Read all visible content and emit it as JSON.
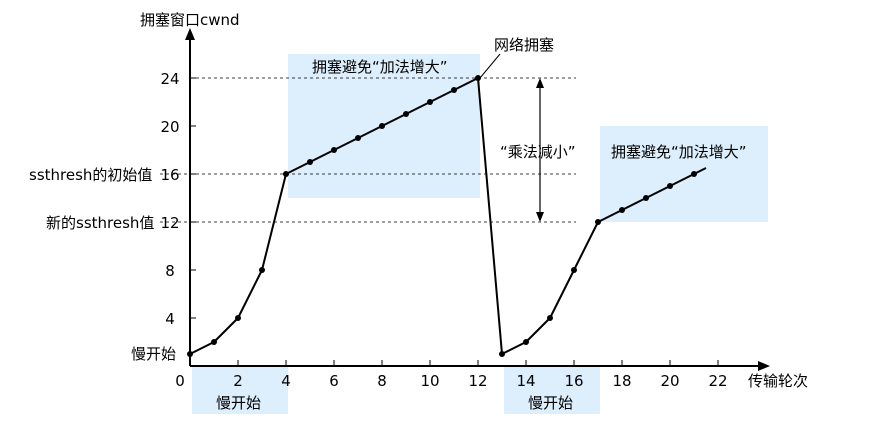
{
  "chart_data": {
    "type": "line",
    "y_title": "拥塞窗口cwnd",
    "x_title": "传输轮次",
    "x_ticks": [
      "0",
      "2",
      "4",
      "6",
      "8",
      "10",
      "12",
      "14",
      "16",
      "18",
      "20",
      "22"
    ],
    "y_ticks": [
      "4",
      "8",
      "12",
      "16",
      "20",
      "24"
    ],
    "xlim": [
      0,
      24
    ],
    "ylim": [
      0,
      26
    ],
    "series": [
      {
        "points": [
          [
            0,
            1
          ],
          [
            1,
            2
          ],
          [
            2,
            4
          ],
          [
            3,
            8
          ],
          [
            4,
            16
          ],
          [
            5,
            17
          ],
          [
            6,
            18
          ],
          [
            7,
            19
          ],
          [
            8,
            20
          ],
          [
            9,
            21
          ],
          [
            10,
            22
          ],
          [
            11,
            23
          ],
          [
            12,
            24
          ],
          [
            13,
            1
          ],
          [
            14,
            2
          ],
          [
            15,
            4
          ],
          [
            16,
            8
          ],
          [
            17,
            12
          ],
          [
            18,
            13
          ],
          [
            19,
            14
          ],
          [
            20,
            15
          ],
          [
            21,
            16
          ],
          [
            21.5,
            16.5
          ]
        ]
      }
    ],
    "dashed_levels": [
      24,
      16,
      12
    ],
    "annotations": {
      "slow_start_1": "慢开始",
      "slow_start_2": "慢开始",
      "slow_start_y": "慢开始",
      "ca_1": "拥塞避免“加法增大”",
      "ca_2": "拥塞避免“加法增大”",
      "md": "“乘法减小”",
      "congestion": "网络拥塞",
      "ssthresh_initial": "ssthresh的初始值",
      "ssthresh_new": "新的ssthresh值"
    },
    "colors": {
      "highlight": "#ddeefc",
      "line": "#000000"
    },
    "grid": false
  }
}
